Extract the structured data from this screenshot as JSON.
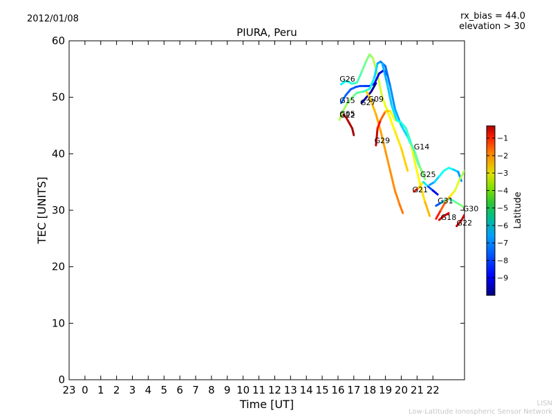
{
  "date": "2012/01/08",
  "bias_text": "rx_bias = 44.0",
  "elev_text": "elevation > 30",
  "credits": {
    "line1": "LISN",
    "line2": "Low-Latitude Ionospheric Sensor Network"
  },
  "chart_data": {
    "type": "scatter",
    "title": "PIURA, Peru",
    "xlabel": "Time [UT]",
    "ylabel": "TEC [UNITS]",
    "ylim": [
      0,
      60
    ],
    "xlim": [
      -1,
      24
    ],
    "x_ticks": [
      {
        "v": -1,
        "label": "23"
      },
      {
        "v": 0,
        "label": "0"
      },
      {
        "v": 1,
        "label": "1"
      },
      {
        "v": 2,
        "label": "2"
      },
      {
        "v": 3,
        "label": "3"
      },
      {
        "v": 4,
        "label": "4"
      },
      {
        "v": 5,
        "label": "5"
      },
      {
        "v": 6,
        "label": "6"
      },
      {
        "v": 7,
        "label": "7"
      },
      {
        "v": 8,
        "label": "8"
      },
      {
        "v": 9,
        "label": "9"
      },
      {
        "v": 10,
        "label": "10"
      },
      {
        "v": 11,
        "label": "11"
      },
      {
        "v": 12,
        "label": "12"
      },
      {
        "v": 13,
        "label": "13"
      },
      {
        "v": 14,
        "label": "14"
      },
      {
        "v": 15,
        "label": "15"
      },
      {
        "v": 16,
        "label": "16"
      },
      {
        "v": 17,
        "label": "17"
      },
      {
        "v": 18,
        "label": "18"
      },
      {
        "v": 19,
        "label": "19"
      },
      {
        "v": 20,
        "label": "20"
      },
      {
        "v": 21,
        "label": "21"
      },
      {
        "v": 22,
        "label": "22"
      }
    ],
    "y_ticks": [
      0,
      10,
      20,
      30,
      40,
      50,
      60
    ],
    "colorbar": {
      "label": "Latitude",
      "range": [
        -10,
        -0.3
      ],
      "ticks": [
        -1,
        -2,
        -3,
        -4,
        -5,
        -6,
        -7,
        -8,
        -9
      ]
    },
    "grid": false,
    "series": [
      {
        "name": "G26",
        "label_at": [
          16.1,
          52.8
        ],
        "color_lat": -6.0,
        "points": [
          [
            16.2,
            52.3
          ],
          [
            16.5,
            52.9
          ],
          [
            16.9,
            52.4
          ],
          [
            17.2,
            52.6
          ],
          [
            17.5,
            54.5
          ],
          [
            17.8,
            56.5
          ],
          [
            18.0,
            57.6
          ],
          [
            18.2,
            57.0
          ],
          [
            18.5,
            54.0
          ],
          [
            18.8,
            50.0
          ],
          [
            19.2,
            47.0
          ],
          [
            19.6,
            44.0
          ],
          [
            20.0,
            41.0
          ],
          [
            20.4,
            37.0
          ]
        ],
        "lat": [
          -6.5,
          -6.3,
          -6.0,
          -5.8,
          -5.5,
          -5.2,
          -5.0,
          -4.8,
          -4.5,
          -4.2,
          -4.0,
          -3.8,
          -3.6,
          -3.4
        ]
      },
      {
        "name": "G15",
        "label_at": [
          16.1,
          49.0
        ],
        "color_lat": -7.8,
        "points": [
          [
            16.2,
            49.0
          ],
          [
            16.5,
            50.4
          ],
          [
            16.8,
            51.4
          ],
          [
            17.1,
            51.8
          ],
          [
            17.4,
            52.0
          ],
          [
            17.7,
            52.0
          ],
          [
            18.0,
            52.0
          ],
          [
            18.3,
            52.4
          ],
          [
            18.6,
            54.2
          ],
          [
            18.9,
            54.8
          ],
          [
            19.1,
            54.0
          ]
        ],
        "lat": [
          -7.8,
          -7.8,
          -7.9,
          -8.0,
          -8.1,
          -8.2,
          -8.4,
          -8.6,
          -8.9,
          -9.2,
          -9.5
        ]
      },
      {
        "name": "G27",
        "label_at": [
          17.4,
          48.6
        ],
        "color_lat": -9.5,
        "points": [
          [
            17.5,
            49.0
          ],
          [
            17.8,
            50.0
          ],
          [
            18.1,
            51.0
          ],
          [
            18.4,
            52.5
          ]
        ],
        "lat": [
          -9.5,
          -9.6,
          -9.7,
          -9.8
        ]
      },
      {
        "name": "G09",
        "label_at": [
          17.9,
          49.2
        ],
        "color_lat": -3.5,
        "points": [
          [
            17.8,
            51.0
          ],
          [
            18.0,
            50.0
          ],
          [
            18.2,
            48.5
          ],
          [
            18.4,
            47.0
          ],
          [
            18.7,
            44.0
          ],
          [
            19.0,
            40.5
          ],
          [
            19.3,
            37.0
          ],
          [
            19.6,
            33.5
          ],
          [
            19.9,
            31.0
          ],
          [
            20.1,
            29.5
          ]
        ],
        "lat": [
          -3.5,
          -3.4,
          -3.3,
          -3.2,
          -3.1,
          -3.0,
          -2.9,
          -2.8,
          -2.7,
          -2.6
        ]
      },
      {
        "name": "G05",
        "label_at": [
          16.1,
          46.6
        ],
        "color_lat": -1.0,
        "points": [
          [
            16.3,
            47.0
          ],
          [
            16.5,
            46.5
          ],
          [
            16.7,
            45.5
          ],
          [
            16.9,
            44.5
          ],
          [
            17.0,
            43.3
          ]
        ],
        "lat": [
          -1.0,
          -0.9,
          -0.8,
          -0.7,
          -0.6
        ]
      },
      {
        "name": "G12",
        "label_at": [
          16.1,
          46.4
        ],
        "color_lat": -4.5,
        "points": [
          [
            16.1,
            46.0
          ],
          [
            16.3,
            47.5
          ],
          [
            16.6,
            49.0
          ],
          [
            16.9,
            50.0
          ],
          [
            17.2,
            50.8
          ],
          [
            17.6,
            51.0
          ],
          [
            18.0,
            51.5
          ],
          [
            18.3,
            53.5
          ],
          [
            18.5,
            56.0
          ],
          [
            18.7,
            56.3
          ],
          [
            19.0,
            55.5
          ],
          [
            19.3,
            52.0
          ],
          [
            19.6,
            48.0
          ],
          [
            20.0,
            45.0
          ],
          [
            20.4,
            43.0
          ],
          [
            20.8,
            40.5
          ],
          [
            21.1,
            38.0
          ],
          [
            21.4,
            36.5
          ]
        ],
        "lat": [
          -4.5,
          -4.8,
          -5.0,
          -5.2,
          -5.4,
          -5.6,
          -6.0,
          -6.5,
          -7.0,
          -7.5,
          -7.8,
          -7.6,
          -7.3,
          -7.0,
          -6.5,
          -6.0,
          -5.5,
          -5.0
        ]
      },
      {
        "name": "G29",
        "label_at": [
          18.3,
          41.9
        ],
        "color_lat": -1.0,
        "points": [
          [
            18.4,
            41.5
          ],
          [
            18.5,
            44.5
          ],
          [
            18.7,
            46.0
          ],
          [
            19.0,
            47.5
          ],
          [
            19.3,
            47.6
          ],
          [
            19.6,
            46.0
          ],
          [
            20.0,
            45.5
          ],
          [
            20.3,
            44.5
          ],
          [
            20.6,
            42.0
          ],
          [
            20.9,
            38.0
          ],
          [
            21.2,
            34.5
          ],
          [
            21.5,
            31.5
          ],
          [
            21.8,
            29.0
          ]
        ],
        "lat": [
          -0.8,
          -1.2,
          -2.0,
          -3.0,
          -3.8,
          -4.2,
          -4.4,
          -4.5,
          -4.2,
          -4.0,
          -3.8,
          -3.5,
          -3.0
        ]
      },
      {
        "name": "G14",
        "label_at": [
          20.8,
          40.8
        ],
        "color_lat": -7.2,
        "points": [
          [
            18.8,
            56.0
          ],
          [
            19.1,
            52.5
          ],
          [
            19.4,
            48.5
          ],
          [
            19.7,
            46.0
          ],
          [
            20.0,
            45.5
          ],
          [
            20.3,
            44.5
          ],
          [
            20.6,
            42.0
          ],
          [
            20.9,
            40.0
          ],
          [
            21.2,
            37.5
          ],
          [
            21.5,
            35.5
          ]
        ],
        "lat": [
          -7.2,
          -7.0,
          -6.8,
          -6.5,
          -6.2,
          -6.0,
          -5.8,
          -5.5,
          -5.2,
          -5.0
        ]
      },
      {
        "name": "G25",
        "label_at": [
          21.2,
          35.9
        ],
        "color_lat": -6.5,
        "points": [
          [
            21.8,
            34.5
          ],
          [
            22.1,
            35.0
          ],
          [
            22.4,
            36.0
          ],
          [
            22.7,
            37.0
          ],
          [
            23.0,
            37.5
          ],
          [
            23.3,
            37.2
          ],
          [
            23.6,
            36.8
          ],
          [
            23.8,
            35.2
          ]
        ],
        "lat": [
          -7.5,
          -7.0,
          -6.5,
          -6.2,
          -6.0,
          -6.5,
          -7.2,
          -7.5
        ]
      },
      {
        "name": "G21",
        "label_at": [
          20.7,
          33.2
        ],
        "color_lat": -2.0,
        "points": [
          [
            20.8,
            33.3
          ],
          [
            21.1,
            34.0
          ],
          [
            21.4,
            35.0
          ],
          [
            21.7,
            34.2
          ],
          [
            22.0,
            33.5
          ],
          [
            22.3,
            32.8
          ]
        ],
        "lat": [
          -1.8,
          -2.0,
          -5.5,
          -7.5,
          -8.5,
          -9.5
        ]
      },
      {
        "name": "G31",
        "label_at": [
          22.3,
          31.2
        ],
        "color_lat": -8.5,
        "points": [
          [
            22.2,
            30.8
          ],
          [
            22.5,
            31.3
          ],
          [
            22.8,
            31.8
          ],
          [
            23.1,
            32.0
          ],
          [
            23.4,
            31.5
          ],
          [
            23.7,
            31.0
          ],
          [
            24.0,
            30.5
          ]
        ],
        "lat": [
          -8.5,
          -7.5,
          -6.2,
          -6.0,
          -5.5,
          -5.2,
          -5.0
        ]
      },
      {
        "name": "G30",
        "label_at": [
          23.9,
          29.8
        ],
        "color_lat": -4.8,
        "points": [
          [
            22.2,
            28.5
          ],
          [
            22.5,
            30.0
          ],
          [
            22.8,
            31.5
          ],
          [
            23.1,
            32.5
          ],
          [
            23.4,
            33.5
          ],
          [
            23.7,
            35.5
          ],
          [
            24.0,
            37.0
          ]
        ],
        "lat": [
          -1.5,
          -2.0,
          -2.8,
          -3.5,
          -4.0,
          -4.5,
          -5.0
        ]
      },
      {
        "name": "G18",
        "label_at": [
          22.5,
          28.3
        ],
        "color_lat": -1.0,
        "points": [
          [
            22.4,
            28.3
          ],
          [
            22.7,
            29.0
          ],
          [
            23.0,
            29.5
          ]
        ],
        "lat": [
          -1.0,
          -1.1,
          -1.2
        ]
      },
      {
        "name": "G22",
        "label_at": [
          23.5,
          27.3
        ],
        "color_lat": -0.8,
        "points": [
          [
            23.5,
            27.2
          ],
          [
            23.8,
            28.2
          ],
          [
            24.0,
            29.2
          ]
        ],
        "lat": [
          -0.8,
          -0.9,
          -1.0
        ]
      }
    ]
  }
}
